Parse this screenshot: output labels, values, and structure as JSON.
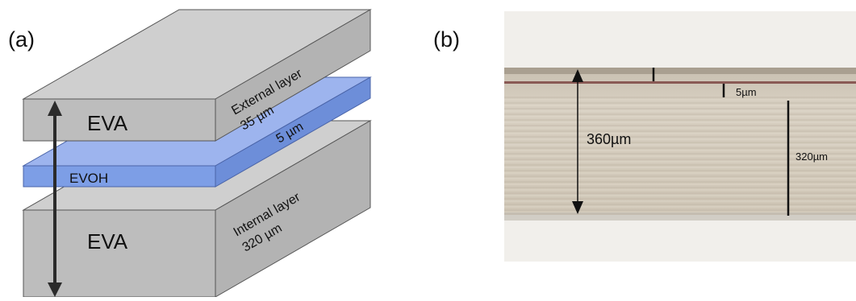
{
  "panel_a": {
    "label": "(a)",
    "top_layer": {
      "material": "EVA",
      "caption_line1": "External layer",
      "caption_line2": "35 µm"
    },
    "middle_layer": {
      "material": "EVOH",
      "thickness": "5 µm"
    },
    "bottom_layer": {
      "material": "EVA",
      "caption_line1": "Internal layer",
      "caption_line2": "320 µm"
    }
  },
  "panel_b": {
    "label": "(b)",
    "total_thickness": "360µm",
    "thin_layer": "5µm",
    "thick_layer": "320µm"
  },
  "colors": {
    "eva_gray": "#b9b9b9",
    "evoh_blue": "#7d9ee6",
    "arrow": "#2b2b2b"
  }
}
